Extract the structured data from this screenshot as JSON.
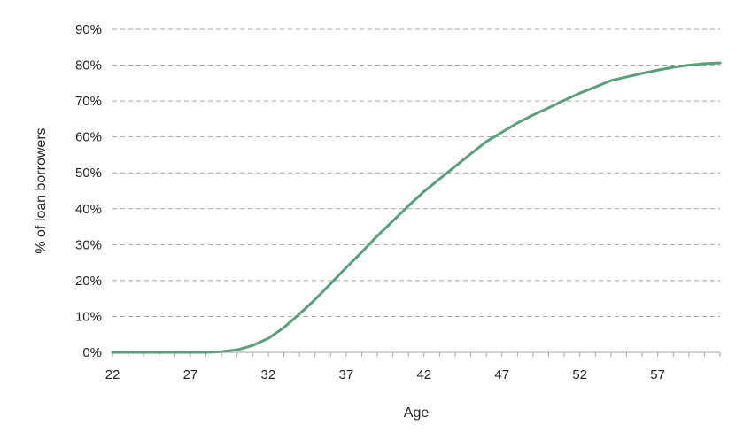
{
  "chart_data": {
    "type": "line",
    "title": "",
    "xlabel": "Age",
    "ylabel": "% of loan borrowers",
    "xlim": [
      22,
      61
    ],
    "ylim": [
      0,
      90
    ],
    "x_ticks": [
      22,
      27,
      32,
      37,
      42,
      47,
      52,
      57
    ],
    "y_ticks": [
      0,
      10,
      20,
      30,
      40,
      50,
      60,
      70,
      80,
      90
    ],
    "y_tick_suffix": "%",
    "grid": "horizontal dashed",
    "series": [
      {
        "color": "#5b9e7a",
        "x": [
          22,
          23,
          24,
          25,
          26,
          27,
          28,
          29,
          30,
          31,
          32,
          33,
          34,
          35,
          36,
          37,
          38,
          39,
          40,
          41,
          42,
          43,
          44,
          45,
          46,
          47,
          48,
          49,
          50,
          51,
          52,
          53,
          54,
          55,
          56,
          57,
          58,
          59,
          60,
          61
        ],
        "y": [
          0,
          0,
          0,
          0,
          0,
          0,
          0,
          0.2,
          0.7,
          1.9,
          3.9,
          6.9,
          10.7,
          14.7,
          19.1,
          23.6,
          27.9,
          32.4,
          36.6,
          40.8,
          44.8,
          48.3,
          51.8,
          55.3,
          58.7,
          61.3,
          63.9,
          66.1,
          68.1,
          70.2,
          72.2,
          73.9,
          75.7,
          76.7,
          77.7,
          78.6,
          79.4,
          80.0,
          80.4,
          80.6
        ]
      }
    ]
  }
}
